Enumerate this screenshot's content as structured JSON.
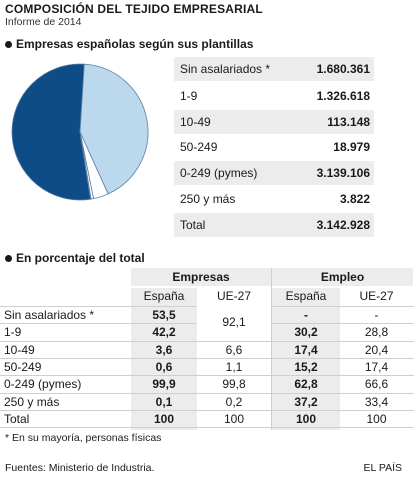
{
  "header": {
    "title": "COMPOSICIÓN DEL TEJIDO EMPRESARIAL",
    "subtitle": "Informe de 2014"
  },
  "section1_title": "Empresas españolas según sus plantillas",
  "section2_title": "En porcentaje del total",
  "chart_data": {
    "type": "pie",
    "title": "Empresas españolas según sus plantillas",
    "slices": [
      {
        "label": "Sin asalariados *",
        "value": 1680361,
        "color": "#0d4c86"
      },
      {
        "label": "1-9",
        "value": 1326618,
        "color": "#bcd8ec"
      },
      {
        "label": "10-49",
        "value": 113148,
        "color": "#ffffff"
      },
      {
        "label": "50-249",
        "value": 18979,
        "color": "#ffffff"
      },
      {
        "label": "250 y más",
        "value": 3822,
        "color": "#ffffff"
      }
    ]
  },
  "stats": [
    {
      "label": "Sin asalariados *",
      "value": "1.680.361"
    },
    {
      "label": "1-9",
      "value": "1.326.618"
    },
    {
      "label": "10-49",
      "value": "113.148"
    },
    {
      "label": "50-249",
      "value": "18.979"
    },
    {
      "label": "0-249 (pymes)",
      "value": "3.139.106"
    },
    {
      "label": "250 y más",
      "value": "3.822"
    },
    {
      "label": "Total",
      "value": "3.142.928"
    }
  ],
  "table": {
    "group_headers": [
      "Empresas",
      "Empleo"
    ],
    "col_headers": [
      "España",
      "UE-27",
      "España",
      "UE-27"
    ],
    "merged_value": "92,1",
    "rows": [
      {
        "label": "Sin asalariados *",
        "emp_es": "53,5",
        "emp_ue": "",
        "empl_es": "-",
        "empl_ue": "-"
      },
      {
        "label": "1-9",
        "emp_es": "42,2",
        "emp_ue": "",
        "empl_es": "30,2",
        "empl_ue": "28,8"
      },
      {
        "label": "10-49",
        "emp_es": "3,6",
        "emp_ue": "6,6",
        "empl_es": "17,4",
        "empl_ue": "20,4"
      },
      {
        "label": "50-249",
        "emp_es": "0,6",
        "emp_ue": "1,1",
        "empl_es": "15,2",
        "empl_ue": "17,4"
      },
      {
        "label": "0-249 (pymes)",
        "emp_es": "99,9",
        "emp_ue": "99,8",
        "empl_es": "62,8",
        "empl_ue": "66,6"
      },
      {
        "label": "250 y más",
        "emp_es": "0,1",
        "emp_ue": "0,2",
        "empl_es": "37,2",
        "empl_ue": "33,4"
      },
      {
        "label": "Total",
        "emp_es": "100",
        "emp_ue": "100",
        "empl_es": "100",
        "empl_ue": "100"
      }
    ]
  },
  "footnote": "* En su mayoría, personas físicas",
  "sources": "Fuentes: Ministerio de Industria.",
  "brand": "EL PAÍS"
}
